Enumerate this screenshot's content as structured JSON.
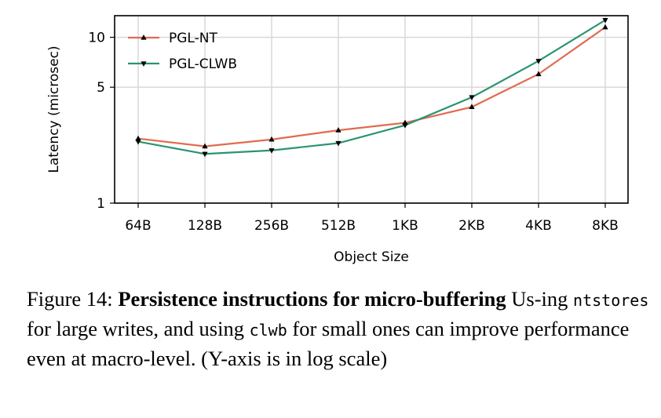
{
  "chart_data": {
    "type": "line",
    "categories": [
      "64B",
      "128B",
      "256B",
      "512B",
      "1KB",
      "2KB",
      "4KB",
      "8KB"
    ],
    "series": [
      {
        "name": "PGL-NT",
        "color": "#e06b50",
        "marker": "triangle-up",
        "values": [
          2.45,
          2.2,
          2.42,
          2.75,
          3.05,
          3.8,
          6.0,
          11.5
        ]
      },
      {
        "name": "PGL-CLWB",
        "color": "#2a9470",
        "marker": "triangle-down",
        "values": [
          2.35,
          1.98,
          2.08,
          2.3,
          2.95,
          4.35,
          7.2,
          12.7
        ]
      }
    ],
    "xlabel": "Object Size",
    "ylabel": "Latency (microsec)",
    "yscale": "log",
    "ylim": [
      1,
      13.5
    ],
    "yticks": [
      1,
      5,
      10
    ],
    "yticklabels": [
      "1",
      "5",
      "10"
    ],
    "grid": true,
    "legend_position": "top-left"
  },
  "caption": {
    "figure_label": "Figure 14:",
    "title": "Persistence instructions for micro-buffering",
    "text_1": "Us-ing",
    "code_1": "ntstores",
    "text_2": "for large writes, and using",
    "code_2": "clwb",
    "text_3": "for small ones can improve performance even at macro-level. (Y-axis is in log scale)"
  }
}
